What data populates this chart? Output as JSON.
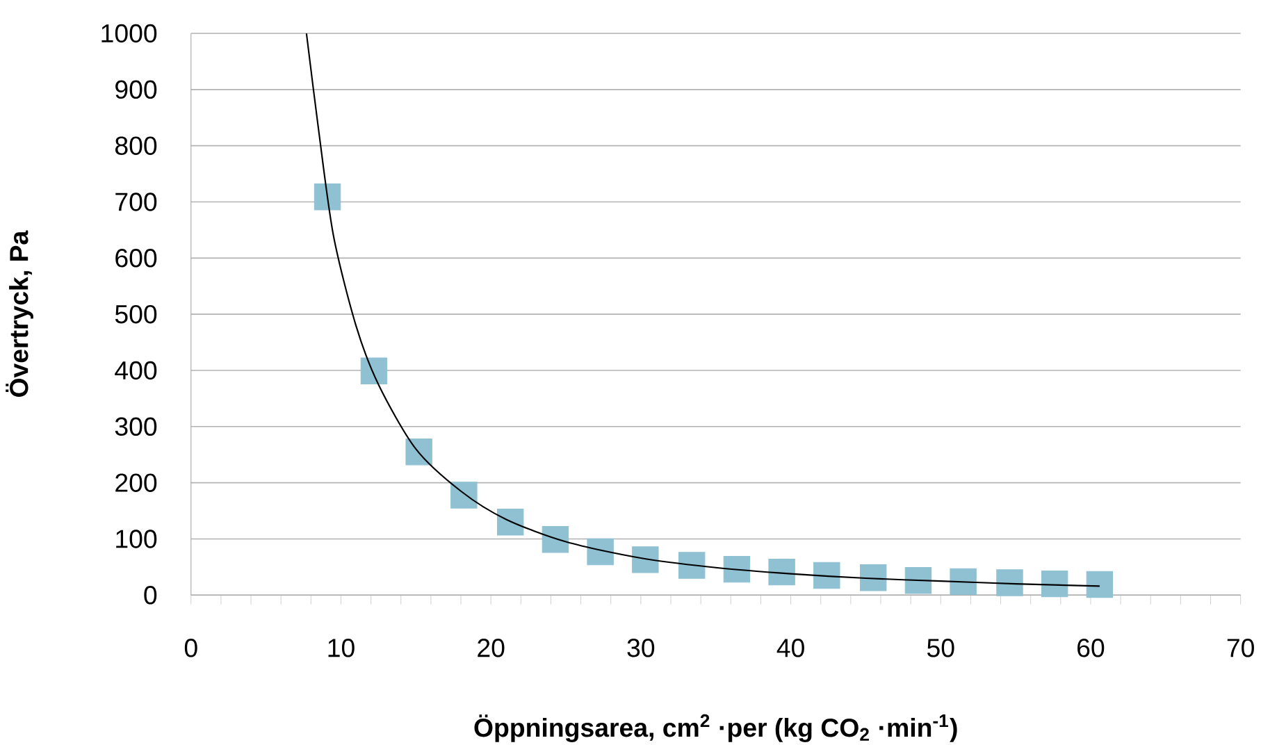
{
  "chart_data": {
    "type": "scatter",
    "xlabel": "Öppningsarea, cm$^{2}$ ·per (kg CO$_{2}$ ·min$^{-1}$)",
    "ylabel": "Övertryck, Pa",
    "xlim": [
      0,
      70
    ],
    "xticks": [
      0,
      10,
      20,
      30,
      40,
      50,
      60,
      70
    ],
    "ylim": [
      0,
      1000
    ],
    "yticks": [
      0,
      100,
      200,
      300,
      400,
      500,
      600,
      700,
      800,
      900,
      1000
    ],
    "grid": "y",
    "series": [
      {
        "marker": "square",
        "color": "#8fc1d3",
        "x": [
          9.1,
          12.2,
          15.2,
          18.2,
          21.3,
          24.3,
          27.3,
          30.3,
          33.4,
          36.4,
          39.4,
          42.4,
          45.5,
          48.5,
          51.5,
          54.6,
          57.6,
          60.6
        ],
        "values": [
          709,
          399,
          255,
          178,
          130,
          99,
          77,
          63,
          53,
          46,
          41,
          35,
          31,
          26,
          24,
          22,
          20,
          19
        ]
      },
      {
        "type": "line",
        "marker": "none",
        "line_style": "solid",
        "color": "#000000",
        "x": [
          7.7,
          8.5,
          9.5,
          11,
          12.5,
          15,
          18,
          21,
          25,
          30,
          35,
          40,
          45,
          50,
          55,
          60.6
        ],
        "values": [
          1000,
          830,
          640,
          480,
          375,
          260,
          185,
          135,
          95,
          66,
          49,
          38,
          30,
          25,
          20,
          16
        ]
      }
    ]
  }
}
